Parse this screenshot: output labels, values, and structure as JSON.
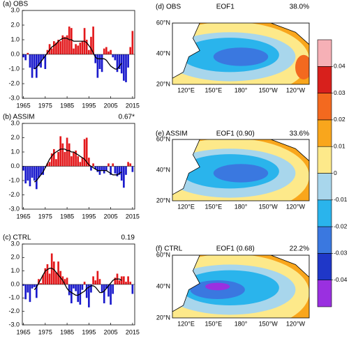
{
  "chart_data": [
    {
      "type": "bar",
      "title": "(a) OBS",
      "x": [
        1965,
        1966,
        1967,
        1968,
        1969,
        1970,
        1971,
        1972,
        1973,
        1974,
        1975,
        1976,
        1977,
        1978,
        1979,
        1980,
        1981,
        1982,
        1983,
        1984,
        1985,
        1986,
        1987,
        1988,
        1989,
        1990,
        1991,
        1992,
        1993,
        1994,
        1995,
        1996,
        1997,
        1998,
        1999,
        2000,
        2001,
        2002,
        2003,
        2004,
        2005,
        2006,
        2007,
        2008,
        2009,
        2010,
        2011,
        2012,
        2013,
        2014,
        2015
      ],
      "values": [
        -0.2,
        -0.4,
        0.1,
        -0.9,
        -1.6,
        -1.0,
        -1.6,
        -0.8,
        -0.9,
        -0.3,
        -1.0,
        0.3,
        0.7,
        0.4,
        0.9,
        0.8,
        1.0,
        0.9,
        1.3,
        1.2,
        1.3,
        1.9,
        1.8,
        0.4,
        0.7,
        0.6,
        0.8,
        0.9,
        1.8,
        1.0,
        0.3,
        1.2,
        1.9,
        -0.6,
        -1.6,
        -1.0,
        -1.2,
        0.4,
        0.5,
        0.2,
        0.3,
        -0.2,
        -0.4,
        -1.2,
        -1.0,
        -1.3,
        -1.8,
        -1.9,
        -0.9,
        0.5,
        1.6
      ],
      "line_values": [
        null,
        null,
        null,
        null,
        null,
        -1.0,
        -0.9,
        -0.7,
        -0.5,
        -0.3,
        -0.1,
        0.1,
        0.3,
        0.5,
        0.6,
        0.7,
        0.9,
        1.0,
        1.1,
        1.1,
        1.1,
        1.0,
        1.0,
        0.9,
        0.9,
        0.9,
        0.9,
        0.9,
        0.9,
        0.8,
        0.6,
        0.4,
        0.1,
        -0.2,
        -0.3,
        -0.3,
        -0.3,
        -0.3,
        -0.4,
        -0.6,
        -0.8,
        -0.9,
        -1.0,
        -1.0,
        -0.8,
        -0.6,
        null,
        null,
        null,
        null,
        null
      ],
      "pos_color": "#e3191c",
      "neg_color": "#1a1acc",
      "line_color": "#000000",
      "xlim": [
        1964.5,
        2016
      ],
      "xticks": [
        1965,
        1975,
        1985,
        1995,
        2005,
        2015
      ],
      "ylim": [
        -3,
        3
      ],
      "yticks": [
        {
          "value": 3,
          "label": "3.0"
        },
        {
          "value": 2,
          "label": "2.0"
        },
        {
          "value": 1,
          "label": "1.0"
        },
        {
          "value": 0,
          "label": "0.0"
        },
        {
          "value": -1,
          "label": "-1.0"
        },
        {
          "value": -2,
          "label": "-2.0"
        },
        {
          "value": -3,
          "label": "-3.0"
        }
      ]
    },
    {
      "type": "bar",
      "title": "(b) ASSIM",
      "annotation": "0.67*",
      "x": [
        1965,
        1966,
        1967,
        1968,
        1969,
        1970,
        1971,
        1972,
        1973,
        1974,
        1975,
        1976,
        1977,
        1978,
        1979,
        1980,
        1981,
        1982,
        1983,
        1984,
        1985,
        1986,
        1987,
        1988,
        1989,
        1990,
        1991,
        1992,
        1993,
        1994,
        1995,
        1996,
        1997,
        1998,
        1999,
        2000,
        2001,
        2002,
        2003,
        2004,
        2005,
        2006,
        2007,
        2008,
        2009,
        2010,
        2011,
        2012,
        2013,
        2014,
        2015
      ],
      "values": [
        -0.3,
        -1.2,
        -1.0,
        -1.4,
        -0.8,
        -1.0,
        -1.6,
        -0.8,
        -0.6,
        -0.6,
        -0.1,
        0.2,
        0.3,
        0.9,
        1.2,
        0.5,
        1.0,
        2.1,
        1.6,
        1.0,
        2.0,
        1.6,
        0.7,
        1.0,
        1.1,
        0.7,
        0.3,
        0.6,
        1.9,
        2.0,
        0.6,
        -0.3,
        0.2,
        -0.2,
        -0.4,
        -0.6,
        -0.3,
        -0.5,
        -0.3,
        0.2,
        -0.6,
        0.2,
        -0.5,
        -0.7,
        -0.6,
        -1.0,
        -1.5,
        -0.6,
        0.3,
        0.2,
        -0.4
      ],
      "line_values": [
        null,
        null,
        null,
        null,
        null,
        -1.1,
        -1.0,
        -0.8,
        -0.6,
        -0.4,
        -0.1,
        0.2,
        0.5,
        0.7,
        0.9,
        1.0,
        1.1,
        1.2,
        1.2,
        1.2,
        1.1,
        1.1,
        1.0,
        1.0,
        0.9,
        0.8,
        0.7,
        0.6,
        0.5,
        0.3,
        0.1,
        0.0,
        -0.1,
        -0.2,
        -0.3,
        -0.3,
        -0.3,
        -0.3,
        -0.3,
        -0.4,
        -0.5,
        -0.6,
        -0.6,
        -0.6,
        -0.5,
        -0.4,
        null,
        null,
        null,
        null,
        null
      ],
      "pos_color": "#e3191c",
      "neg_color": "#1a1acc",
      "line_color": "#000000",
      "xlim": [
        1964.5,
        2016
      ],
      "xticks": [
        1965,
        1975,
        1985,
        1995,
        2005,
        2015
      ],
      "ylim": [
        -3,
        3
      ],
      "yticks": [
        {
          "value": 3,
          "label": "3.0"
        },
        {
          "value": 2,
          "label": "2.0"
        },
        {
          "value": 1,
          "label": "1.0"
        },
        {
          "value": 0,
          "label": "0.0"
        },
        {
          "value": -1,
          "label": "-1.0"
        },
        {
          "value": -2,
          "label": "-2.0"
        },
        {
          "value": -3,
          "label": "-3.0"
        }
      ]
    },
    {
      "type": "bar",
      "title": "(c) CTRL",
      "annotation": "0.19",
      "x": [
        1965,
        1966,
        1967,
        1968,
        1969,
        1970,
        1971,
        1972,
        1973,
        1974,
        1975,
        1976,
        1977,
        1978,
        1979,
        1980,
        1981,
        1982,
        1983,
        1984,
        1985,
        1986,
        1987,
        1988,
        1989,
        1990,
        1991,
        1992,
        1993,
        1994,
        1995,
        1996,
        1997,
        1998,
        1999,
        2000,
        2001,
        2002,
        2003,
        2004,
        2005,
        2006,
        2007,
        2008,
        2009,
        2010,
        2011,
        2012,
        2013,
        2014,
        2015
      ],
      "values": [
        -0.1,
        -1.1,
        -0.6,
        -1.3,
        -0.3,
        -0.2,
        -1.0,
        0.4,
        0.1,
        0.7,
        1.2,
        1.5,
        0.8,
        2.3,
        1.7,
        0.9,
        1.7,
        1.0,
        0.6,
        0.4,
        0.5,
        -0.8,
        -1.4,
        -0.3,
        -0.5,
        -1.3,
        -1.5,
        -0.4,
        0.2,
        -1.0,
        -1.7,
        -0.6,
        0.6,
        0.3,
        1.0,
        0.4,
        -0.6,
        -1.4,
        -0.3,
        -0.9,
        -1.5,
        -0.7,
        0.5,
        0.8,
        0.3,
        0.6,
        0.6,
        0.2,
        0.6,
        0.2,
        -0.7
      ],
      "line_values": [
        null,
        null,
        null,
        null,
        null,
        -0.4,
        -0.2,
        0.1,
        0.4,
        0.7,
        1.0,
        1.1,
        1.2,
        1.2,
        1.1,
        0.9,
        0.7,
        0.5,
        0.3,
        0.0,
        -0.3,
        -0.5,
        -0.6,
        -0.7,
        -0.8,
        -0.8,
        -0.7,
        -0.6,
        -0.5,
        -0.3,
        -0.2,
        -0.1,
        -0.1,
        -0.2,
        -0.4,
        -0.6,
        -0.6,
        -0.5,
        -0.3,
        -0.1,
        0.1,
        0.3,
        0.4,
        0.4,
        0.4,
        0.3,
        null,
        null,
        null,
        null,
        null
      ],
      "pos_color": "#e3191c",
      "neg_color": "#1a1acc",
      "line_color": "#000000",
      "xlim": [
        1964.5,
        2016
      ],
      "xticks": [
        1965,
        1975,
        1985,
        1995,
        2005,
        2015
      ],
      "ylim": [
        -3,
        3
      ],
      "yticks": [
        {
          "value": 3,
          "label": "3.0"
        },
        {
          "value": 2,
          "label": "2.0"
        },
        {
          "value": 1,
          "label": "1.0"
        },
        {
          "value": 0,
          "label": "0.0"
        },
        {
          "value": -1,
          "label": "-1.0"
        },
        {
          "value": -2,
          "label": "-2.0"
        },
        {
          "value": -3,
          "label": "-3.0"
        }
      ]
    },
    {
      "type": "map",
      "title": "(d) OBS",
      "subtitle": "EOF1",
      "annotation": "38.0%",
      "lat_labels": [
        "60°N",
        "40°N",
        "20°N"
      ],
      "lon_labels": [
        "120°E",
        "150°E",
        "180°",
        "150°W",
        "120°W"
      ]
    },
    {
      "type": "map",
      "title": "(e) ASSIM",
      "subtitle": "EOF1 (0.90)",
      "annotation": "33.6%",
      "lat_labels": [
        "60°N",
        "40°N",
        "20°N"
      ],
      "lon_labels": [
        "120°E",
        "150°E",
        "180°",
        "150°W",
        "120°W"
      ]
    },
    {
      "type": "map",
      "title": "(f) CTRL",
      "subtitle": "EOF1 (0.68)",
      "annotation": "22.2%",
      "lat_labels": [
        "60°N",
        "40°N",
        "20°N"
      ],
      "lon_labels": [
        "120°E",
        "150°E",
        "180°",
        "150°W",
        "120°W"
      ]
    },
    {
      "type": "colorbar",
      "ylim": [
        -0.05,
        0.05
      ],
      "yticks": [
        -0.04,
        -0.03,
        -0.02,
        -0.01,
        0,
        0.01,
        0.02,
        0.03,
        0.04
      ],
      "colors": [
        "#9a30e0",
        "#1f37c8",
        "#3a78e0",
        "#2ab4ec",
        "#a8d6ec",
        "#fde98a",
        "#f9a61c",
        "#f3691f",
        "#d8201c",
        "#f6b0b6"
      ]
    }
  ]
}
